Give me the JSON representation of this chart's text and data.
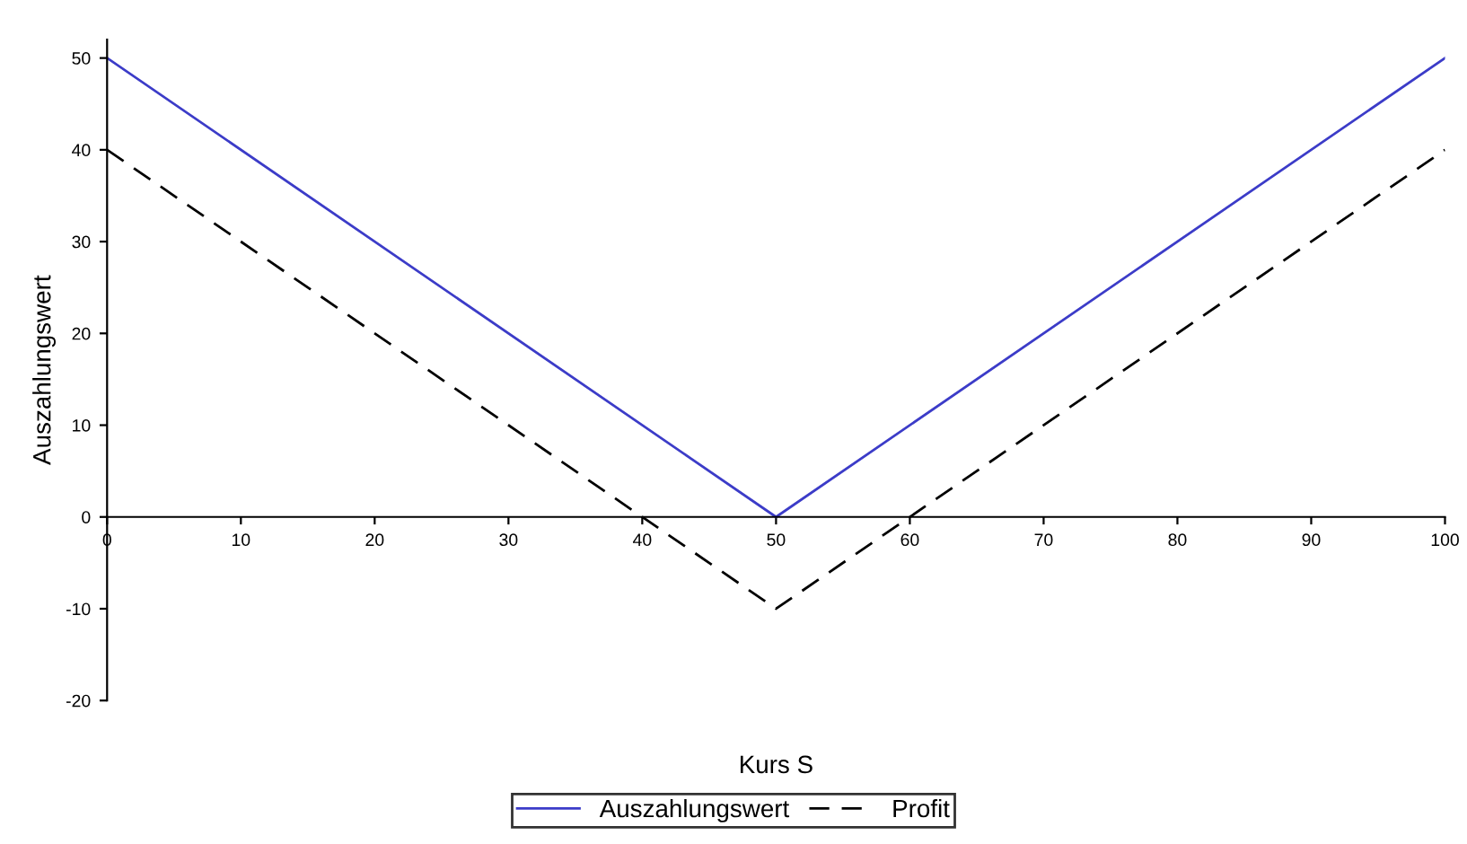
{
  "chart_data": {
    "type": "line",
    "xlabel": "Kurs S",
    "ylabel": "Auszahlungswert",
    "x": [
      0,
      50,
      100
    ],
    "series": [
      {
        "name": "Auszahlungswert",
        "color": "#3c3cc8",
        "values": [
          50,
          0,
          50
        ],
        "line_style": "solid"
      },
      {
        "name": "Profit",
        "color": "#000000",
        "values": [
          40,
          -10,
          40
        ],
        "line_style": "dashed"
      }
    ],
    "xlim": [
      0,
      100
    ],
    "xticks": [
      0,
      10,
      20,
      30,
      40,
      50,
      60,
      70,
      80,
      90,
      100
    ],
    "ylim": [
      -20,
      52
    ],
    "yticks": [
      -20,
      -10,
      0,
      10,
      20,
      30,
      40,
      50
    ],
    "grid": false,
    "legend": "bottom",
    "marker": "none"
  }
}
